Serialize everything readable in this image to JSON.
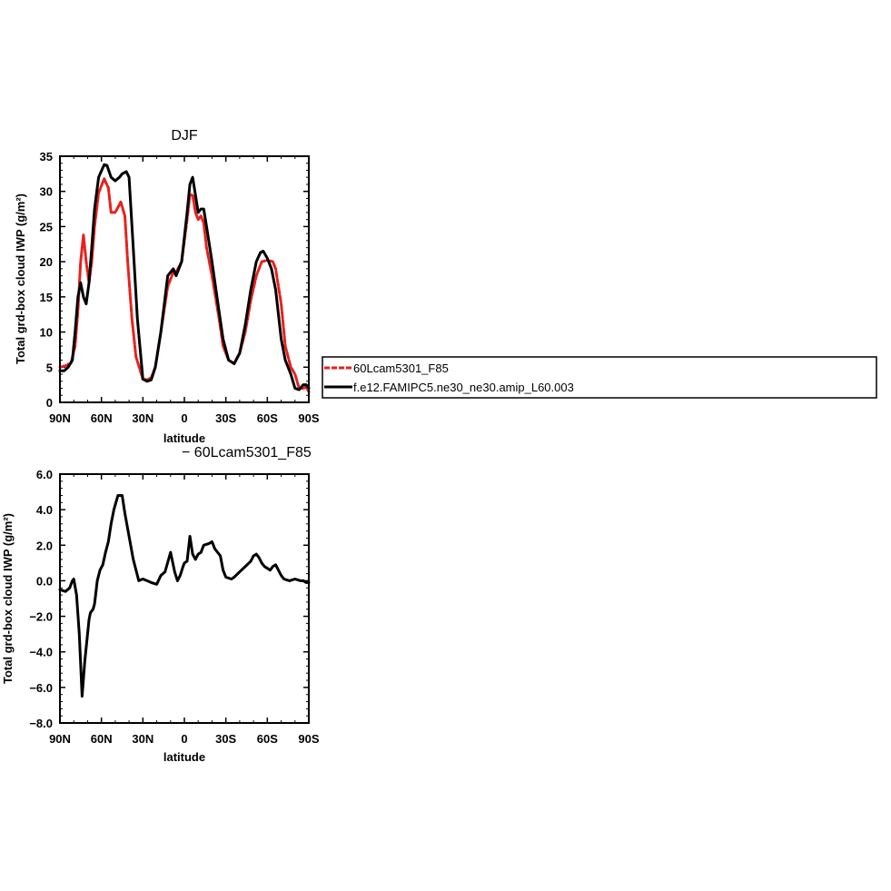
{
  "chart_data": [
    {
      "type": "line",
      "title": "DJF",
      "xlabel": "latitude",
      "ylabel": "Total grd-box cloud IWP (g/m²)",
      "xlim": [
        -90,
        90
      ],
      "ylim": [
        0,
        35
      ],
      "xticks": [
        -90,
        -60,
        -30,
        0,
        30,
        60,
        90
      ],
      "xtick_labels": [
        "90N",
        "60N",
        "30N",
        "0",
        "30S",
        "60S",
        "90S"
      ],
      "yticks": [
        0,
        5,
        10,
        15,
        20,
        25,
        30,
        35
      ],
      "ytick_labels": [
        "0",
        "5",
        "10",
        "15",
        "20",
        "25",
        "30",
        "35"
      ],
      "series": [
        {
          "name": "60Lcam5301_F85",
          "color": "#e8201c",
          "style": "dashed",
          "x": [
            -90,
            -86,
            -82,
            -79,
            -77,
            -75,
            -73,
            -71,
            -69,
            -67,
            -65,
            -62,
            -58,
            -55,
            -53,
            -50,
            -46,
            -43,
            -41,
            -38,
            -35,
            -30,
            -27,
            -24,
            -21,
            -17,
            -12,
            -8,
            -6,
            -2,
            2,
            4,
            6,
            8,
            10,
            12,
            14,
            16,
            20,
            25,
            28,
            32,
            36,
            40,
            44,
            48,
            52,
            56,
            60,
            64,
            66,
            70,
            73,
            77,
            80,
            83,
            86,
            88,
            90
          ],
          "y": [
            5,
            5.2,
            5.6,
            8,
            13,
            20,
            23.8,
            20,
            17,
            20,
            25,
            29.8,
            31.8,
            30.5,
            27,
            27,
            28.5,
            26.5,
            20,
            12,
            6.5,
            3.3,
            3.2,
            3.5,
            5,
            10,
            16.5,
            18.5,
            18.5,
            20,
            26,
            29.5,
            29.5,
            27,
            26,
            26.5,
            25.5,
            22,
            18,
            12,
            8,
            6,
            5.5,
            7,
            10,
            14.5,
            18,
            20,
            20.2,
            20,
            19,
            14,
            8,
            5,
            4,
            2,
            2,
            2.2,
            1.5
          ]
        },
        {
          "name": "f.e12.FAMIPC5.ne30_ne30.amip_L60.003",
          "color": "#000000",
          "style": "solid",
          "x": [
            -90,
            -87,
            -84,
            -81,
            -79,
            -77,
            -75,
            -73,
            -71,
            -69,
            -67,
            -65,
            -62,
            -58,
            -56,
            -53,
            -50,
            -47,
            -45,
            -42,
            -40,
            -37,
            -34,
            -30,
            -27,
            -24,
            -21,
            -17,
            -12,
            -8,
            -6,
            -2,
            2,
            4,
            6,
            8,
            10,
            12,
            14,
            16,
            20,
            25,
            28,
            32,
            36,
            40,
            44,
            48,
            52,
            55,
            57,
            60,
            63,
            66,
            70,
            73,
            77,
            80,
            83,
            86,
            88,
            90
          ],
          "y": [
            4.5,
            4.5,
            5,
            6,
            10,
            15,
            17,
            15,
            14,
            17,
            22,
            27.5,
            32,
            33.8,
            33.7,
            32,
            31.5,
            32,
            32.5,
            32.8,
            32,
            22,
            12,
            3.3,
            3,
            3.2,
            5,
            10,
            18,
            19,
            18,
            20,
            27,
            31,
            32,
            29.5,
            27,
            27.5,
            27.5,
            25,
            20,
            13,
            9,
            6,
            5.5,
            7,
            11,
            16,
            20,
            21.3,
            21.5,
            20.5,
            19,
            16,
            9,
            6,
            4,
            2,
            1.8,
            2.5,
            2.5,
            2
          ]
        }
      ],
      "legend": {
        "placement": "right-middle",
        "entries": [
          "60Lcam5301_F85",
          "f.e12.FAMIPC5.ne30_ne30.amip_L60.003"
        ]
      }
    },
    {
      "type": "line",
      "title": "− 60Lcam5301_F85",
      "xlabel": "latitude",
      "ylabel": "Total grd-box cloud IWP (g/m²)",
      "xlim": [
        -90,
        90
      ],
      "ylim": [
        -8,
        6
      ],
      "xticks": [
        -90,
        -60,
        -30,
        0,
        30,
        60,
        90
      ],
      "xtick_labels": [
        "90N",
        "60N",
        "30N",
        "0",
        "30S",
        "60S",
        "90S"
      ],
      "yticks": [
        -8,
        -6,
        -4,
        -2,
        0,
        2,
        4,
        6
      ],
      "ytick_labels": [
        "−8.0",
        "−6.0",
        "−4.0",
        "−2.0",
        "0.0",
        "2.0",
        "4.0",
        "6.0"
      ],
      "series": [
        {
          "name": "",
          "color": "#000000",
          "style": "solid",
          "x": [
            -90,
            -86,
            -83,
            -81,
            -80,
            -78,
            -76,
            -74,
            -72,
            -70,
            -69,
            -68,
            -66,
            -65,
            -63,
            -61,
            -59,
            -57,
            -55,
            -53,
            -51,
            -48,
            -45,
            -43,
            -40,
            -37,
            -33,
            -30,
            -27,
            -24,
            -20,
            -17,
            -14,
            -10,
            -7,
            -5,
            -3,
            -1,
            0,
            2,
            4,
            6,
            8,
            10,
            12,
            14,
            18,
            20,
            22,
            26,
            28,
            30,
            34,
            36,
            40,
            44,
            48,
            50,
            52,
            54,
            56,
            58,
            60,
            62,
            64,
            66,
            68,
            70,
            72,
            76,
            80,
            84,
            86,
            88,
            90
          ],
          "y": [
            -0.5,
            -0.6,
            -0.4,
            0,
            0.1,
            -0.8,
            -3,
            -6.5,
            -4.5,
            -3,
            -2.2,
            -1.8,
            -1.6,
            -1.3,
            0,
            0.6,
            0.9,
            1.6,
            2.2,
            3.2,
            4,
            4.8,
            4.8,
            3.8,
            2.5,
            1.2,
            0,
            0.1,
            0,
            -0.1,
            -0.2,
            0.3,
            0.5,
            1.6,
            0.5,
            0,
            0.3,
            0.8,
            1,
            1.1,
            2.5,
            1.5,
            1.2,
            1.5,
            1.6,
            2,
            2.1,
            2.2,
            1.8,
            1.4,
            0.6,
            0.2,
            0.1,
            0.2,
            0.5,
            0.8,
            1.1,
            1.4,
            1.5,
            1.3,
            1,
            0.8,
            0.7,
            0.6,
            0.8,
            0.9,
            0.6,
            0.3,
            0.1,
            0,
            0.1,
            0,
            0,
            -0.1,
            -0.1
          ]
        }
      ]
    }
  ]
}
